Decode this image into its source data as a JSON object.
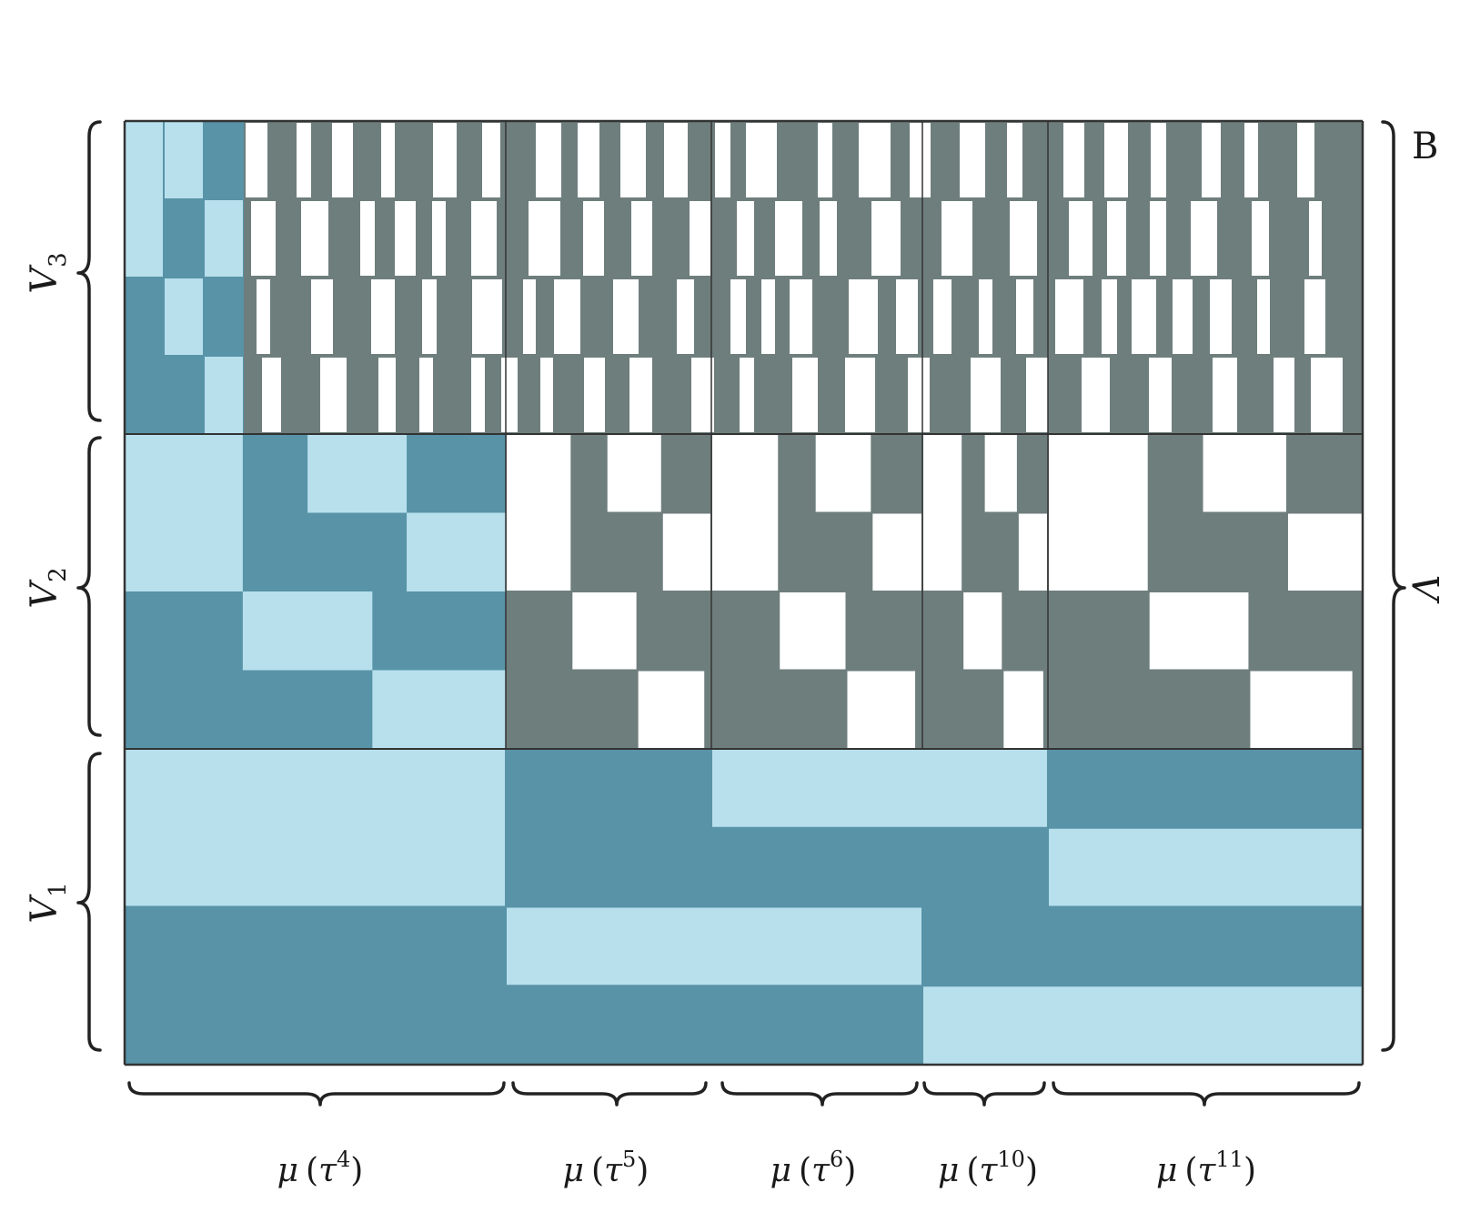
{
  "colors": {
    "light_blue": "#b7e0ec",
    "dark_blue": "#5893a8",
    "gray": "#6e7e7d",
    "white": "#ffffff",
    "border": "#333333"
  },
  "labels": {
    "top_right": "B",
    "right_brace": "Λ",
    "rows": [
      {
        "base": "V",
        "sub": "3"
      },
      {
        "base": "V",
        "sub": "2"
      },
      {
        "base": "V",
        "sub": "1"
      }
    ],
    "columns": [
      {
        "mu": "μ",
        "tau": "τ",
        "exp": "4"
      },
      {
        "mu": "μ",
        "tau": "τ",
        "exp": "5"
      },
      {
        "mu": "μ",
        "tau": "τ",
        "exp": "6"
      },
      {
        "mu": "μ",
        "tau": "τ",
        "exp": "10"
      },
      {
        "mu": "μ",
        "tau": "τ",
        "exp": "11"
      }
    ]
  },
  "grid": {
    "v1_band": {
      "rows": 4,
      "cells": [
        {
          "kind": "light",
          "r0": 0,
          "r1": 2,
          "g0": 0,
          "g1": 1
        },
        {
          "kind": "light",
          "r0": 2,
          "r1": 3,
          "g0": 1,
          "g1": 3
        },
        {
          "kind": "light",
          "r0": 0,
          "r1": 1,
          "g0": 2,
          "g1": 4
        },
        {
          "kind": "light",
          "r0": 3,
          "r1": 4,
          "g0": 3,
          "g1": 5
        },
        {
          "kind": "light",
          "r0": 1,
          "r1": 2,
          "g0": 4,
          "g1": 5
        }
      ]
    },
    "v2_band": {
      "rows": 4,
      "group0_rects": [
        {
          "kind": "light",
          "r0": 0,
          "r1": 2,
          "f0": 0,
          "f1": 0.31
        },
        {
          "kind": "light",
          "r0": 0,
          "r1": 1,
          "f0": 0.48,
          "f1": 0.74
        },
        {
          "kind": "light",
          "r0": 1,
          "r1": 2,
          "f0": 0.74,
          "f1": 1
        },
        {
          "kind": "light",
          "r0": 2,
          "r1": 3,
          "f0": 0.31,
          "f1": 0.65
        },
        {
          "kind": "light",
          "r0": 3,
          "r1": 4,
          "f0": 0.65,
          "f1": 1
        }
      ],
      "gray_group_pattern": [
        {
          "r0": 0,
          "r1": 2,
          "f0": 0,
          "f1": 0.32
        },
        {
          "r0": 0,
          "r1": 1,
          "f0": 0.49,
          "f1": 0.76
        },
        {
          "r0": 1,
          "r1": 2,
          "f0": 0.76,
          "f1": 1
        },
        {
          "r0": 2,
          "r1": 3,
          "f0": 0.32,
          "f1": 0.64
        },
        {
          "r0": 3,
          "r1": 4,
          "f0": 0.64,
          "f1": 0.97
        }
      ]
    },
    "v3_band": {
      "rows": 4,
      "group0_rects": [
        {
          "kind": "light",
          "r0": 0,
          "r1": 2,
          "f0": 0,
          "f1": 0.31
        },
        {
          "kind": "light",
          "r0": 0,
          "r1": 1,
          "f0": 0.48,
          "f1": 0.74
        },
        {
          "kind": "light",
          "r0": 1,
          "r1": 2,
          "f0": 0.74,
          "f1": 1
        },
        {
          "kind": "light",
          "r0": 2,
          "r1": 3,
          "f0": 0.31,
          "f1": 0.65
        },
        {
          "kind": "light",
          "r0": 3,
          "r1": 4,
          "f0": 0.65,
          "f1": 1
        }
      ]
    }
  }
}
